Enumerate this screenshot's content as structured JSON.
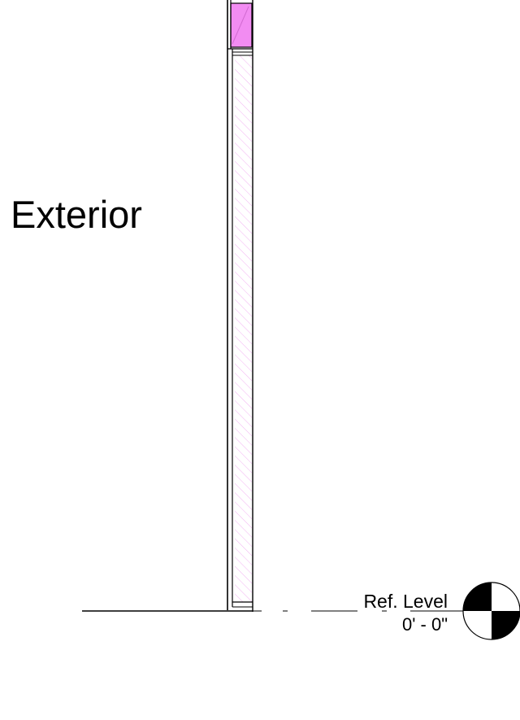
{
  "drawing": {
    "side_label": "Exterior",
    "level": {
      "name": "Ref. Level",
      "elevation": "0' - 0\""
    },
    "colors": {
      "line": "#000000",
      "hatch": "#f2a7f2",
      "glazing_fill": "#f28cf2",
      "background": "#ffffff"
    }
  }
}
